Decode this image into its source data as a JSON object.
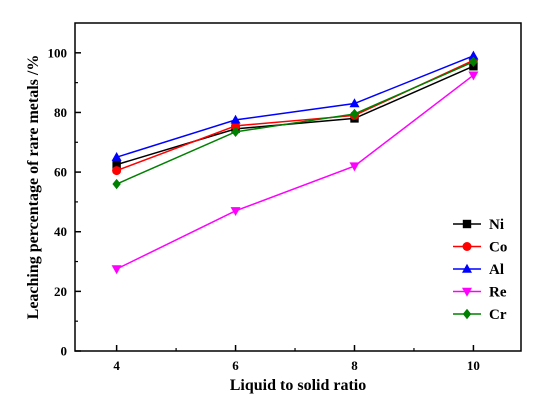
{
  "chart_data": {
    "type": "line",
    "xlabel": "Liquid to solid ratio",
    "ylabel": "Leaching percentage of rare metals /%",
    "x": [
      4,
      6,
      8,
      10
    ],
    "xticks": [
      "4",
      "6",
      "8",
      "10"
    ],
    "xlim": [
      3.3,
      10.8
    ],
    "ylim": [
      0,
      110
    ],
    "yticks": [
      "0",
      "20",
      "40",
      "60",
      "80",
      "100"
    ],
    "grid": false,
    "legend_position": "bottom-right",
    "series": [
      {
        "name": "Ni",
        "values": [
          62.5,
          74.5,
          78,
          95.5
        ],
        "color": "#000000",
        "marker": "square"
      },
      {
        "name": "Co",
        "values": [
          60.5,
          75.5,
          79,
          97.5
        ],
        "color": "#ff0000",
        "marker": "circle"
      },
      {
        "name": "Al",
        "values": [
          65,
          77.5,
          83,
          99
        ],
        "color": "#0000ff",
        "marker": "triangle-up"
      },
      {
        "name": "Re",
        "values": [
          27.5,
          47,
          62,
          92.5
        ],
        "color": "#ff00ff",
        "marker": "triangle-down"
      },
      {
        "name": "Cr",
        "values": [
          56,
          73.5,
          79.5,
          97
        ],
        "color": "#008000",
        "marker": "diamond"
      }
    ]
  }
}
